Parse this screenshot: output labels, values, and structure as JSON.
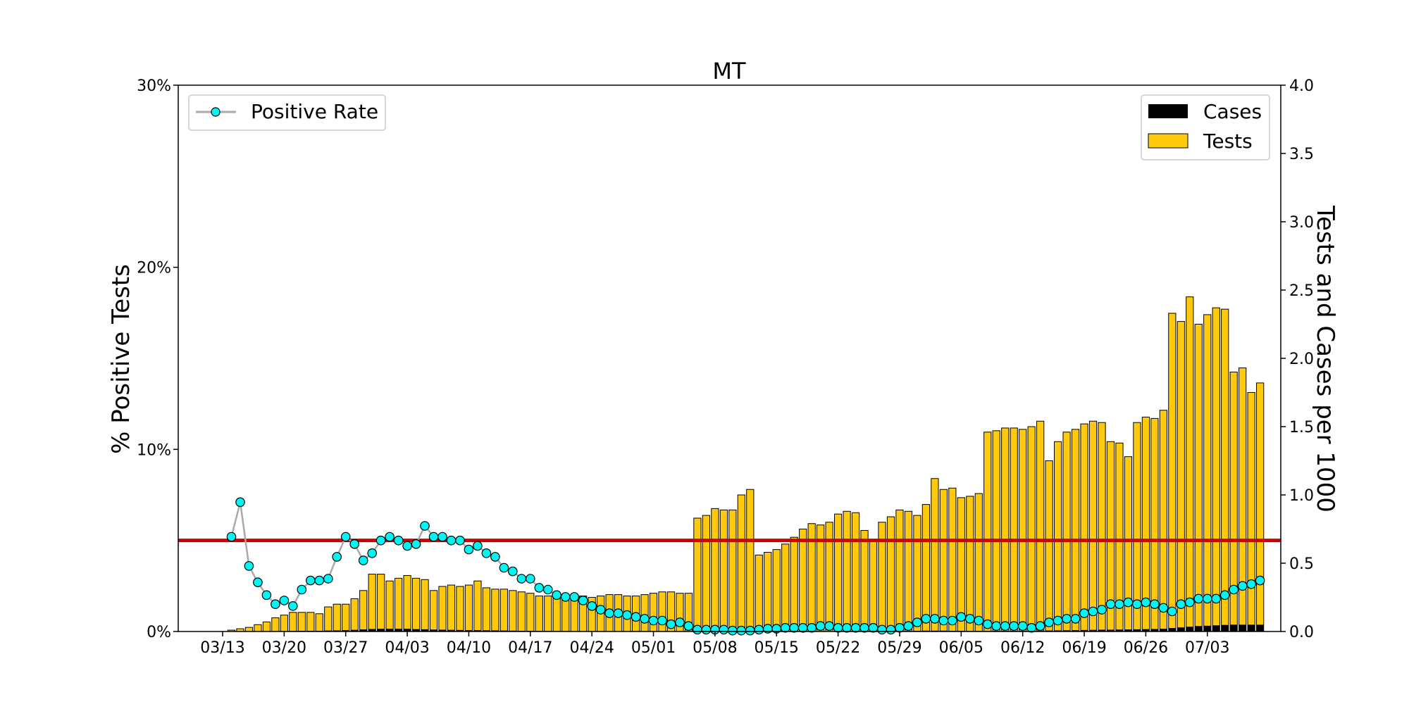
{
  "chart_data": {
    "type": "bar",
    "title": "MT",
    "ylabel_left": "% Positive Tests",
    "ylabel_right": "Tests and Cases per 1000",
    "ylim_left": [
      0,
      30
    ],
    "ylim_right": [
      0,
      4.0
    ],
    "left_ticks": [
      "0%",
      "10%",
      "20%",
      "30%"
    ],
    "right_ticks": [
      "0.0",
      "0.5",
      "1.0",
      "1.5",
      "2.0",
      "2.5",
      "3.0",
      "3.5",
      "4.0"
    ],
    "date_ticks": [
      "03/13",
      "03/20",
      "03/27",
      "04/03",
      "04/10",
      "04/17",
      "04/24",
      "05/01",
      "05/08",
      "05/15",
      "05/22",
      "05/29",
      "06/05",
      "06/12",
      "06/19",
      "06/26",
      "07/03"
    ],
    "first_date": "03/13",
    "threshold": {
      "value": 5,
      "color": "#cc0000"
    },
    "colors": {
      "tests": "#ffc90e",
      "cases": "#000000",
      "rate_marker": "#00f5f5",
      "rate_line": "#aaaaaa"
    },
    "legend_left": {
      "placement": "top-left",
      "label": "Positive Rate"
    },
    "legend_right": {
      "placement": "top-right",
      "labels": [
        "Cases",
        "Tests"
      ]
    },
    "series": [
      {
        "name": "Tests",
        "start_day": 1,
        "values": [
          0.01,
          0.02,
          0.03,
          0.05,
          0.07,
          0.1,
          0.12,
          0.14,
          0.14,
          0.14,
          0.13,
          0.18,
          0.2,
          0.2,
          0.24,
          0.3,
          0.42,
          0.42,
          0.37,
          0.39,
          0.41,
          0.39,
          0.38,
          0.3,
          0.33,
          0.34,
          0.33,
          0.34,
          0.37,
          0.32,
          0.31,
          0.31,
          0.3,
          0.29,
          0.28,
          0.26,
          0.26,
          0.27,
          0.27,
          0.26,
          0.26,
          0.25,
          0.26,
          0.27,
          0.27,
          0.26,
          0.26,
          0.27,
          0.28,
          0.29,
          0.29,
          0.28,
          0.28,
          0.83,
          0.85,
          0.9,
          0.89,
          0.89,
          1.0,
          1.04,
          0.56,
          0.58,
          0.6,
          0.64,
          0.69,
          0.75,
          0.79,
          0.78,
          0.8,
          0.86,
          0.88,
          0.87,
          0.74,
          0.67,
          0.8,
          0.84,
          0.89,
          0.88,
          0.85,
          0.93,
          1.12,
          1.04,
          1.05,
          0.98,
          0.99,
          1.01,
          1.46,
          1.47,
          1.49,
          1.49,
          1.48,
          1.5,
          1.54,
          1.25,
          1.39,
          1.46,
          1.48,
          1.52,
          1.54,
          1.53,
          1.39,
          1.38,
          1.28,
          1.53,
          1.57,
          1.56,
          1.62,
          2.33,
          2.27,
          2.45,
          2.25,
          2.32,
          2.37,
          2.36,
          1.9,
          1.93,
          1.75,
          1.82
        ]
      },
      {
        "name": "Cases",
        "start_day": 1,
        "values": [
          0,
          0,
          0,
          0,
          0,
          0.002,
          0.003,
          0.004,
          0.005,
          0.005,
          0.005,
          0.007,
          0.008,
          0.01,
          0.012,
          0.015,
          0.018,
          0.02,
          0.02,
          0.02,
          0.02,
          0.017,
          0.016,
          0.014,
          0.013,
          0.012,
          0.011,
          0.01,
          0.01,
          0.009,
          0.008,
          0.007,
          0.006,
          0.005,
          0.005,
          0.004,
          0.004,
          0.003,
          0.003,
          0.002,
          0.002,
          0.002,
          0.002,
          0.002,
          0.002,
          0.002,
          0.001,
          0.001,
          0.001,
          0.001,
          0.001,
          0.001,
          0.001,
          0.001,
          0.001,
          0.001,
          0.001,
          0.001,
          0.001,
          0.001,
          0.001,
          0.001,
          0.001,
          0.001,
          0.001,
          0.001,
          0.001,
          0.001,
          0.001,
          0.001,
          0.001,
          0.001,
          0.001,
          0.001,
          0.001,
          0.002,
          0.003,
          0.004,
          0.005,
          0.006,
          0.006,
          0.006,
          0.005,
          0.005,
          0.004,
          0.004,
          0.004,
          0.005,
          0.005,
          0.005,
          0.005,
          0.006,
          0.007,
          0.007,
          0.008,
          0.009,
          0.01,
          0.011,
          0.012,
          0.013,
          0.013,
          0.014,
          0.015,
          0.016,
          0.017,
          0.018,
          0.02,
          0.025,
          0.03,
          0.035,
          0.04,
          0.042,
          0.045,
          0.048,
          0.05,
          0.05,
          0.05,
          0.05
        ]
      },
      {
        "name": "Positive Rate",
        "start_day": 1,
        "values": [
          5.2,
          7.1,
          3.6,
          2.7,
          2.0,
          1.5,
          1.7,
          1.4,
          2.3,
          2.8,
          2.8,
          2.9,
          4.1,
          5.2,
          4.8,
          3.9,
          4.3,
          5.0,
          5.2,
          5.0,
          4.7,
          4.8,
          5.8,
          5.2,
          5.2,
          5.0,
          5.0,
          4.5,
          4.7,
          4.3,
          4.1,
          3.5,
          3.3,
          2.9,
          2.9,
          2.4,
          2.3,
          2.0,
          1.9,
          1.9,
          1.7,
          1.4,
          1.2,
          1.0,
          1.0,
          0.9,
          0.8,
          0.7,
          0.6,
          0.6,
          0.4,
          0.5,
          0.3,
          0.1,
          0.1,
          0.1,
          0.1,
          0.05,
          0.05,
          0.05,
          0.1,
          0.15,
          0.15,
          0.2,
          0.2,
          0.2,
          0.2,
          0.3,
          0.3,
          0.2,
          0.2,
          0.2,
          0.2,
          0.2,
          0.1,
          0.1,
          0.2,
          0.3,
          0.5,
          0.7,
          0.7,
          0.6,
          0.6,
          0.8,
          0.7,
          0.6,
          0.4,
          0.3,
          0.3,
          0.3,
          0.3,
          0.2,
          0.3,
          0.5,
          0.6,
          0.7,
          0.7,
          1.0,
          1.1,
          1.2,
          1.5,
          1.5,
          1.6,
          1.5,
          1.6,
          1.5,
          1.3,
          1.1,
          1.5,
          1.6,
          1.8,
          1.8,
          1.8,
          2.0,
          2.3,
          2.5,
          2.6,
          2.8
        ]
      }
    ]
  }
}
